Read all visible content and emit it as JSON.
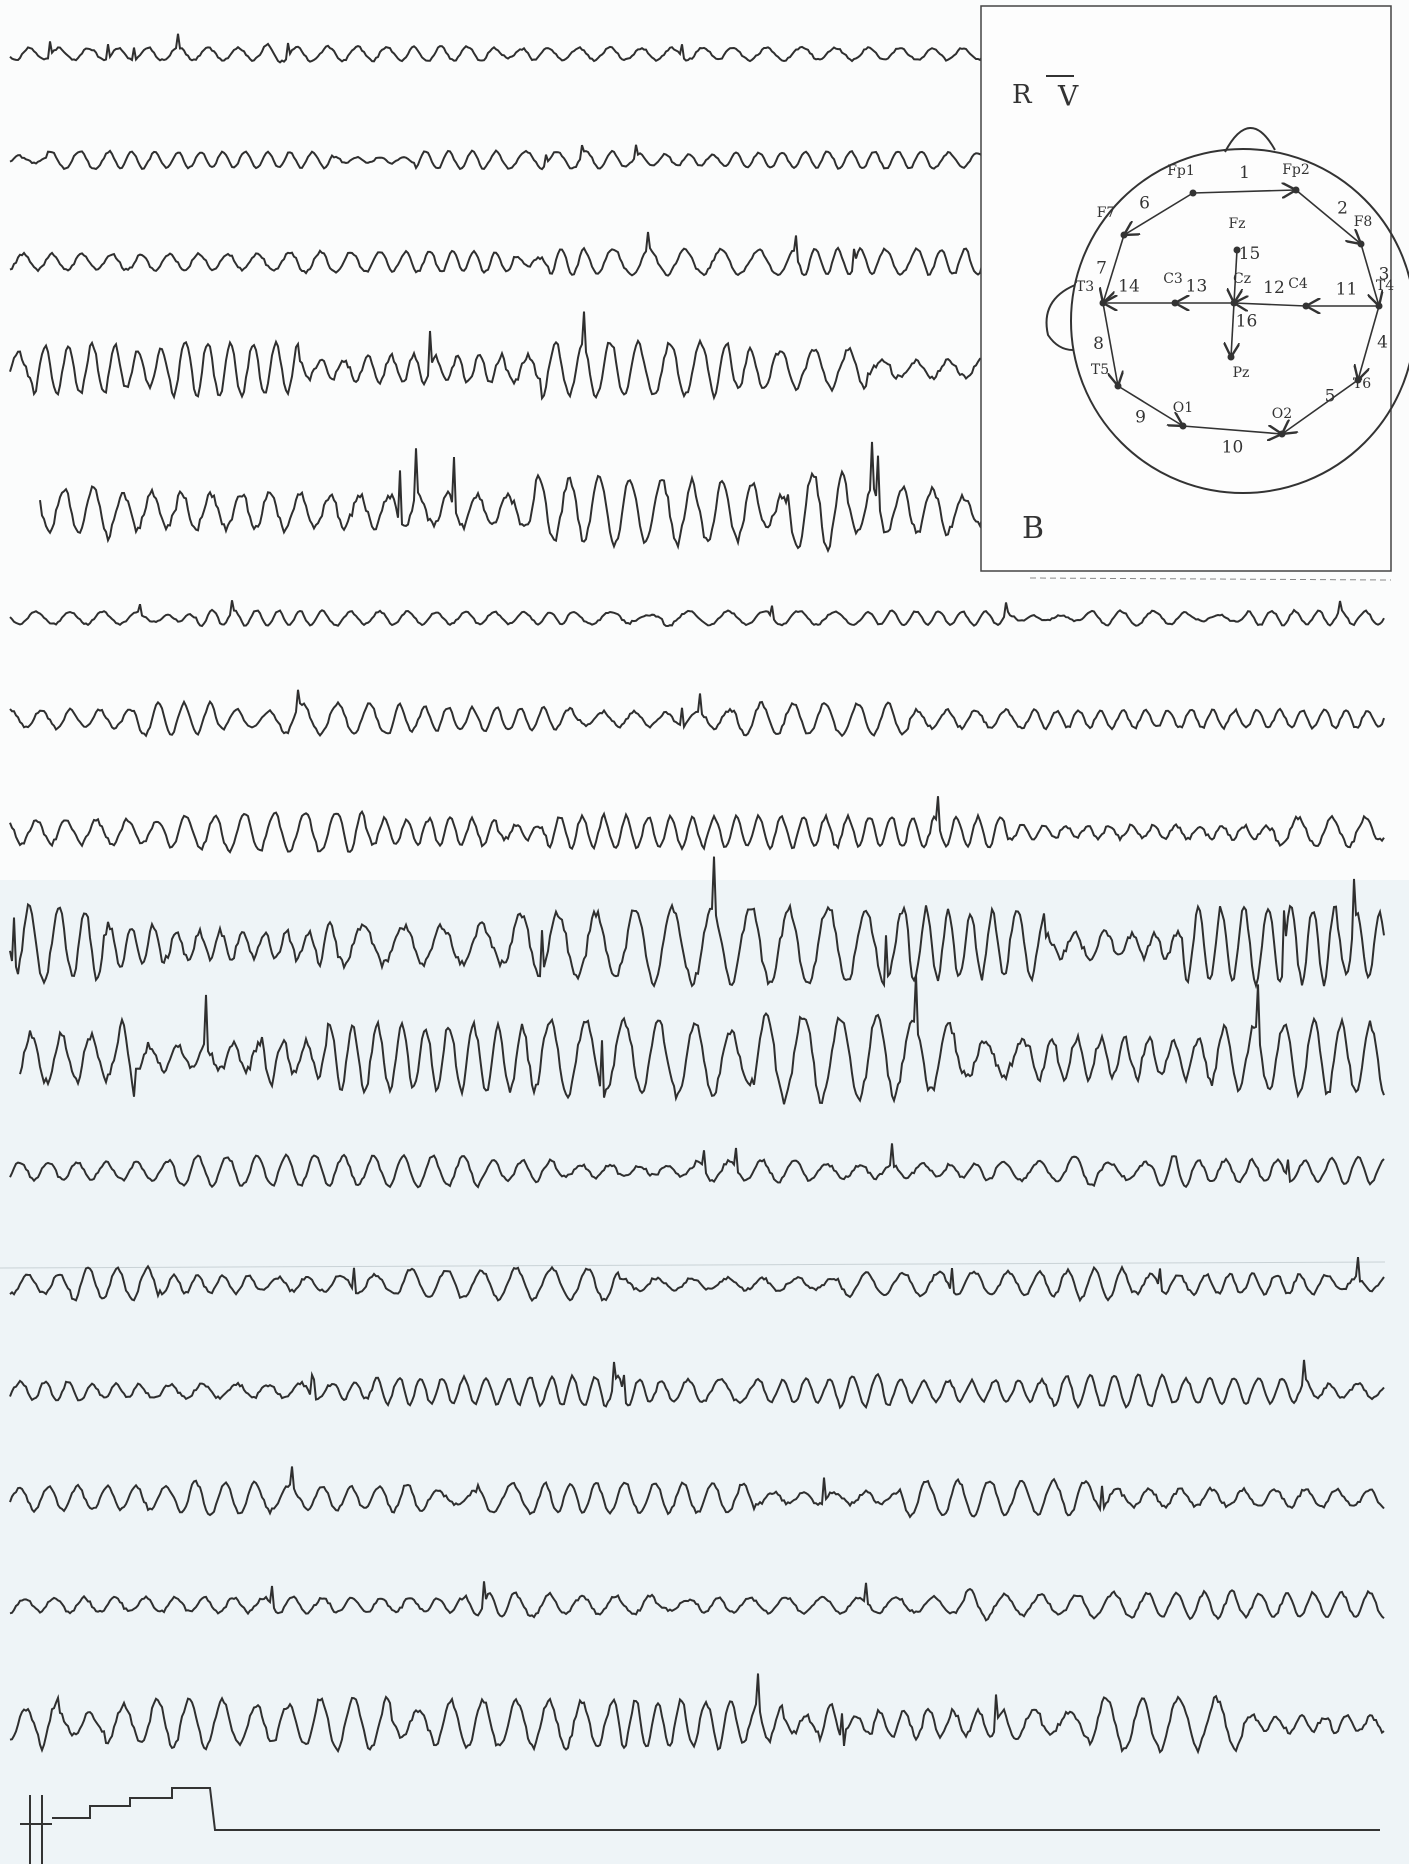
{
  "header": {
    "side": "R",
    "view": "V",
    "label": "B"
  },
  "electrodes": [
    "Fp1",
    "Fp2",
    "F7",
    "F8",
    "Fz",
    "T3",
    "C3",
    "Cz",
    "C4",
    "T4",
    "T5",
    "T6",
    "Pz",
    "O1",
    "O2"
  ],
  "links": [
    "1",
    "2",
    "3",
    "4",
    "5",
    "6",
    "7",
    "8",
    "9",
    "10",
    "11",
    "12",
    "13",
    "14",
    "15",
    "16"
  ]
}
